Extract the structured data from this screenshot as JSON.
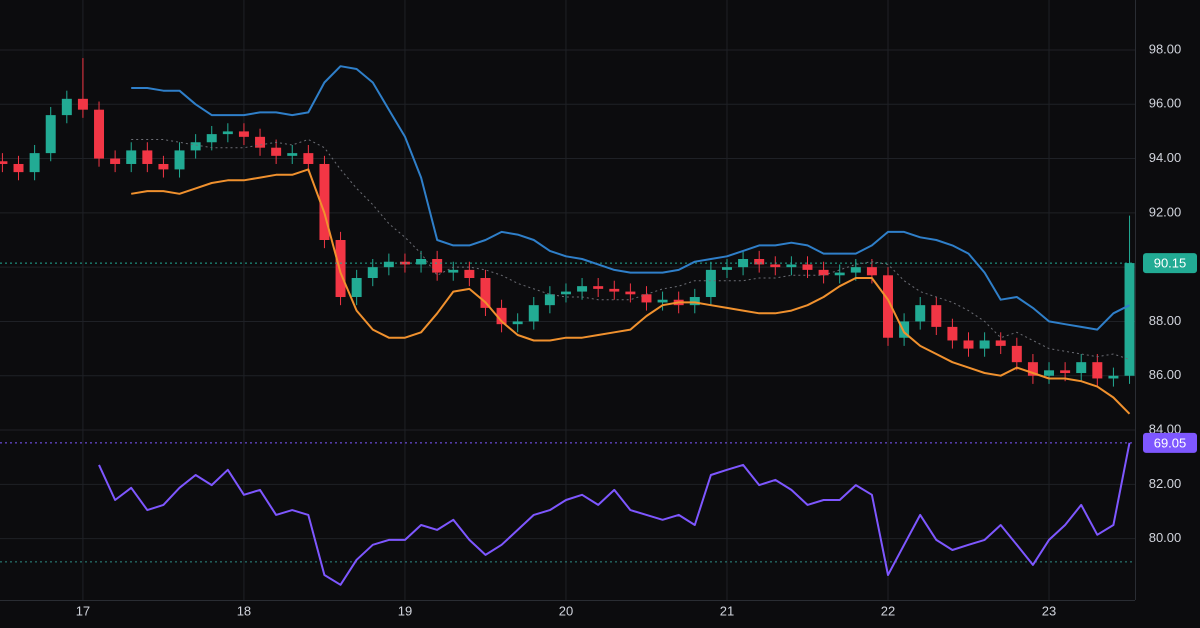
{
  "chart_data": {
    "type": "candlestick",
    "xlim": [
      16.485,
      23.534
    ],
    "xticks": [
      17,
      18,
      19,
      20,
      21,
      22,
      23
    ],
    "ylim": [
      77.74,
      99.84
    ],
    "yticks": [
      {
        "value": 80,
        "label": "80.00"
      },
      {
        "value": 82,
        "label": "82.00"
      },
      {
        "value": 84,
        "label": "84.00"
      },
      {
        "value": 86,
        "label": "86.00"
      },
      {
        "value": 88,
        "label": "88.00"
      },
      {
        "value": 90,
        "label": "90.00"
      },
      {
        "value": 92,
        "label": "92.00"
      },
      {
        "value": 94,
        "label": "94.00"
      },
      {
        "value": 96,
        "label": "96.00"
      },
      {
        "value": 98,
        "label": "98.00"
      }
    ],
    "y2lim": [
      17.5,
      214.3
    ],
    "grid": true,
    "hlines": [
      {
        "axis": "y2",
        "value": 30,
        "color": "#2e8a83"
      }
    ],
    "series": [
      {
        "type": "candlestick",
        "up_color": "#22ab94",
        "down_color": "#f23645",
        "x": [
          16.5,
          16.6,
          16.7,
          16.8,
          16.9,
          17.0,
          17.1,
          17.2,
          17.3,
          17.4,
          17.5,
          17.6,
          17.7,
          17.8,
          17.9,
          18.0,
          18.1,
          18.2,
          18.3,
          18.4,
          18.5,
          18.6,
          18.7,
          18.8,
          18.9,
          19.0,
          19.1,
          19.2,
          19.3,
          19.4,
          19.5,
          19.6,
          19.7,
          19.8,
          19.9,
          20.0,
          20.1,
          20.2,
          20.3,
          20.4,
          20.5,
          20.6,
          20.7,
          20.8,
          20.9,
          21.0,
          21.1,
          21.2,
          21.3,
          21.4,
          21.5,
          21.6,
          21.7,
          21.8,
          21.9,
          22.0,
          22.1,
          22.2,
          22.3,
          22.4,
          22.5,
          22.6,
          22.7,
          22.8,
          22.9,
          23.0,
          23.1,
          23.2,
          23.3,
          23.4,
          23.5
        ],
        "open": [
          93.9,
          93.8,
          93.5,
          94.2,
          95.6,
          96.2,
          95.8,
          94.0,
          93.8,
          94.3,
          93.8,
          93.6,
          94.3,
          94.6,
          94.9,
          95.0,
          94.8,
          94.4,
          94.1,
          94.2,
          93.8,
          91.0,
          88.9,
          89.6,
          90.0,
          90.2,
          90.1,
          90.3,
          89.8,
          89.9,
          89.6,
          88.5,
          87.9,
          88.0,
          88.6,
          89.0,
          89.1,
          89.3,
          89.2,
          89.1,
          89.0,
          88.7,
          88.8,
          88.6,
          88.9,
          89.9,
          90.0,
          90.3,
          90.1,
          90.0,
          90.1,
          89.9,
          89.7,
          89.8,
          90.0,
          89.7,
          87.4,
          88.0,
          88.6,
          87.8,
          87.3,
          87.0,
          87.3,
          87.1,
          86.5,
          86.0,
          86.2,
          86.1,
          86.5,
          85.9,
          86.0
        ],
        "high": [
          94.2,
          94.1,
          94.5,
          95.9,
          96.5,
          97.7,
          96.1,
          94.3,
          94.6,
          94.6,
          94.1,
          94.6,
          94.9,
          95.2,
          95.3,
          95.3,
          95.1,
          94.7,
          94.5,
          94.5,
          94.1,
          91.3,
          89.9,
          90.3,
          90.5,
          90.5,
          90.6,
          90.6,
          90.2,
          90.2,
          89.9,
          88.8,
          88.3,
          88.9,
          89.3,
          89.4,
          89.6,
          89.6,
          89.5,
          89.4,
          89.3,
          89.1,
          89.1,
          89.2,
          90.2,
          90.3,
          90.6,
          90.6,
          90.4,
          90.4,
          90.4,
          90.2,
          90.1,
          90.3,
          90.3,
          90.0,
          88.3,
          88.9,
          88.9,
          88.1,
          87.6,
          87.6,
          87.6,
          87.4,
          86.8,
          86.5,
          86.5,
          86.8,
          86.8,
          86.3,
          91.9
        ],
        "low": [
          93.5,
          93.2,
          93.2,
          93.9,
          95.3,
          95.5,
          93.7,
          93.5,
          93.5,
          93.5,
          93.3,
          93.3,
          94.0,
          94.3,
          94.6,
          94.5,
          94.1,
          93.8,
          93.8,
          93.5,
          90.7,
          88.6,
          88.6,
          89.3,
          89.7,
          89.8,
          89.8,
          89.5,
          89.5,
          89.3,
          88.2,
          87.6,
          87.6,
          87.7,
          88.3,
          88.7,
          88.8,
          88.9,
          88.8,
          88.7,
          88.4,
          88.4,
          88.3,
          88.3,
          88.6,
          89.6,
          89.7,
          89.8,
          89.7,
          89.7,
          89.6,
          89.4,
          89.4,
          89.5,
          89.4,
          87.1,
          87.1,
          87.7,
          87.5,
          87.0,
          86.7,
          86.7,
          86.8,
          86.2,
          85.7,
          85.7,
          85.8,
          85.8,
          85.6,
          85.6,
          85.7
        ],
        "close": [
          93.8,
          93.5,
          94.2,
          95.6,
          96.2,
          95.8,
          94.0,
          93.8,
          94.3,
          93.8,
          93.6,
          94.3,
          94.6,
          94.9,
          95.0,
          94.8,
          94.4,
          94.1,
          94.2,
          93.8,
          91.0,
          88.9,
          89.6,
          90.0,
          90.2,
          90.1,
          90.3,
          89.8,
          89.9,
          89.6,
          88.5,
          87.9,
          88.0,
          88.6,
          89.0,
          89.1,
          89.3,
          89.2,
          89.1,
          89.0,
          88.7,
          88.8,
          88.6,
          88.9,
          89.9,
          90.0,
          90.3,
          90.1,
          90.0,
          90.1,
          89.9,
          89.7,
          89.8,
          90.0,
          89.7,
          87.4,
          88.0,
          88.6,
          87.8,
          87.3,
          87.0,
          87.3,
          87.1,
          86.5,
          86.0,
          86.2,
          86.1,
          86.5,
          85.9,
          86.0,
          90.15
        ]
      },
      {
        "type": "line",
        "color": "#2f7fc9",
        "width": 2,
        "x": [
          17.3,
          17.4,
          17.5,
          17.6,
          17.7,
          17.8,
          17.9,
          18.0,
          18.1,
          18.2,
          18.3,
          18.4,
          18.5,
          18.6,
          18.7,
          18.8,
          18.9,
          19.0,
          19.1,
          19.2,
          19.3,
          19.4,
          19.5,
          19.6,
          19.7,
          19.8,
          19.9,
          20.0,
          20.1,
          20.2,
          20.3,
          20.4,
          20.5,
          20.6,
          20.7,
          20.8,
          20.9,
          21.0,
          21.1,
          21.2,
          21.3,
          21.4,
          21.5,
          21.6,
          21.7,
          21.8,
          21.9,
          22.0,
          22.1,
          22.2,
          22.3,
          22.4,
          22.5,
          22.6,
          22.7,
          22.8,
          22.9,
          23.0,
          23.1,
          23.2,
          23.3,
          23.4,
          23.5
        ],
        "values": [
          96.6,
          96.6,
          96.5,
          96.5,
          96.0,
          95.6,
          95.6,
          95.6,
          95.7,
          95.7,
          95.6,
          95.7,
          96.8,
          97.4,
          97.3,
          96.8,
          95.8,
          94.8,
          93.3,
          91.0,
          90.8,
          90.8,
          91.0,
          91.3,
          91.2,
          91.0,
          90.6,
          90.4,
          90.3,
          90.1,
          89.9,
          89.8,
          89.8,
          89.8,
          89.9,
          90.2,
          90.3,
          90.4,
          90.6,
          90.8,
          90.8,
          90.9,
          90.8,
          90.5,
          90.5,
          90.5,
          90.8,
          91.3,
          91.3,
          91.1,
          91.0,
          90.8,
          90.5,
          89.8,
          88.8,
          88.9,
          88.5,
          88.0,
          87.9,
          87.8,
          87.7,
          88.3,
          88.6
        ]
      },
      {
        "type": "line",
        "color": "#6b6d74",
        "width": 1,
        "dash": true,
        "x": [
          17.3,
          17.4,
          17.5,
          17.6,
          17.7,
          17.8,
          17.9,
          18.0,
          18.1,
          18.2,
          18.3,
          18.4,
          18.5,
          18.6,
          18.7,
          18.8,
          18.9,
          19.0,
          19.1,
          19.2,
          19.3,
          19.4,
          19.5,
          19.6,
          19.7,
          19.8,
          19.9,
          20.0,
          20.1,
          20.2,
          20.3,
          20.4,
          20.5,
          20.6,
          20.7,
          20.8,
          20.9,
          21.0,
          21.1,
          21.2,
          21.3,
          21.4,
          21.5,
          21.6,
          21.7,
          21.8,
          21.9,
          22.0,
          22.1,
          22.2,
          22.3,
          22.4,
          22.5,
          22.6,
          22.7,
          22.8,
          22.9,
          23.0,
          23.1,
          23.2,
          23.3,
          23.4,
          23.5
        ],
        "values": [
          94.7,
          94.7,
          94.7,
          94.6,
          94.5,
          94.4,
          94.4,
          94.4,
          94.5,
          94.6,
          94.5,
          94.7,
          94.4,
          93.6,
          92.9,
          92.3,
          91.6,
          91.1,
          90.5,
          89.7,
          90.0,
          90.0,
          89.9,
          89.7,
          89.4,
          89.2,
          89.0,
          88.9,
          88.9,
          88.8,
          88.8,
          88.8,
          89.0,
          89.2,
          89.3,
          89.5,
          89.5,
          89.5,
          89.5,
          89.6,
          89.6,
          89.7,
          89.7,
          89.7,
          89.9,
          90.1,
          90.2,
          90.1,
          89.5,
          89.1,
          88.9,
          88.7,
          88.4,
          88.0,
          87.4,
          87.6,
          87.3,
          87.0,
          86.9,
          86.8,
          86.7,
          86.8,
          86.6
        ]
      },
      {
        "type": "line",
        "color": "#f0912e",
        "width": 2,
        "x": [
          17.3,
          17.4,
          17.5,
          17.6,
          17.7,
          17.8,
          17.9,
          18.0,
          18.1,
          18.2,
          18.3,
          18.4,
          18.5,
          18.6,
          18.7,
          18.8,
          18.9,
          19.0,
          19.1,
          19.2,
          19.3,
          19.4,
          19.5,
          19.6,
          19.7,
          19.8,
          19.9,
          20.0,
          20.1,
          20.2,
          20.3,
          20.4,
          20.5,
          20.6,
          20.7,
          20.8,
          20.9,
          21.0,
          21.1,
          21.2,
          21.3,
          21.4,
          21.5,
          21.6,
          21.7,
          21.8,
          21.9,
          22.0,
          22.1,
          22.2,
          22.3,
          22.4,
          22.5,
          22.6,
          22.7,
          22.8,
          22.9,
          23.0,
          23.1,
          23.2,
          23.3,
          23.4,
          23.5
        ],
        "values": [
          92.7,
          92.8,
          92.8,
          92.7,
          92.9,
          93.1,
          93.2,
          93.2,
          93.3,
          93.4,
          93.4,
          93.6,
          92.0,
          89.8,
          88.4,
          87.7,
          87.4,
          87.4,
          87.6,
          88.3,
          89.1,
          89.2,
          88.7,
          88.0,
          87.5,
          87.3,
          87.3,
          87.4,
          87.4,
          87.5,
          87.6,
          87.7,
          88.2,
          88.6,
          88.7,
          88.7,
          88.6,
          88.5,
          88.4,
          88.3,
          88.3,
          88.4,
          88.6,
          88.9,
          89.3,
          89.6,
          89.6,
          88.8,
          87.6,
          87.1,
          86.8,
          86.5,
          86.3,
          86.1,
          86.0,
          86.3,
          86.1,
          85.9,
          85.9,
          85.8,
          85.6,
          85.2,
          84.6
        ]
      },
      {
        "type": "line",
        "axis": "y2",
        "color": "#7e57ff",
        "width": 2,
        "x": [
          17.1,
          17.2,
          17.3,
          17.4,
          17.5,
          17.6,
          17.7,
          17.8,
          17.9,
          18.0,
          18.1,
          18.2,
          18.3,
          18.4,
          18.5,
          18.6,
          18.7,
          18.8,
          18.9,
          19.0,
          19.1,
          19.2,
          19.3,
          19.4,
          19.5,
          19.6,
          19.7,
          19.8,
          19.9,
          20.0,
          20.1,
          20.2,
          20.3,
          20.4,
          20.5,
          20.6,
          20.7,
          20.8,
          20.9,
          21.0,
          21.1,
          21.2,
          21.3,
          21.4,
          21.5,
          21.6,
          21.7,
          21.8,
          21.9,
          22.0,
          22.1,
          22.2,
          22.3,
          22.4,
          22.5,
          22.6,
          22.7,
          22.8,
          22.9,
          23.0,
          23.1,
          23.2,
          23.3,
          23.4,
          23.5
        ],
        "values": [
          61.8,
          50.3,
          54.3,
          47,
          48.7,
          54.3,
          58.5,
          55.2,
          60.2,
          52,
          53.6,
          45.4,
          47,
          45.4,
          25.7,
          22.5,
          30.7,
          35.6,
          37.2,
          37.2,
          42.1,
          40.5,
          43.8,
          37.2,
          32.3,
          35.6,
          40.5,
          45.4,
          47,
          50.3,
          52,
          48.7,
          53.6,
          47,
          45.4,
          43.8,
          45.4,
          42.1,
          58.5,
          60.2,
          61.8,
          55.2,
          56.9,
          53.6,
          48.7,
          50.3,
          50.3,
          55.2,
          52,
          25.7,
          35.6,
          45.4,
          37.2,
          33.9,
          35.6,
          37.2,
          42.1,
          35.6,
          29,
          37.2,
          42.1,
          48.7,
          38.9,
          42.1,
          69.05
        ]
      }
    ]
  }
}
